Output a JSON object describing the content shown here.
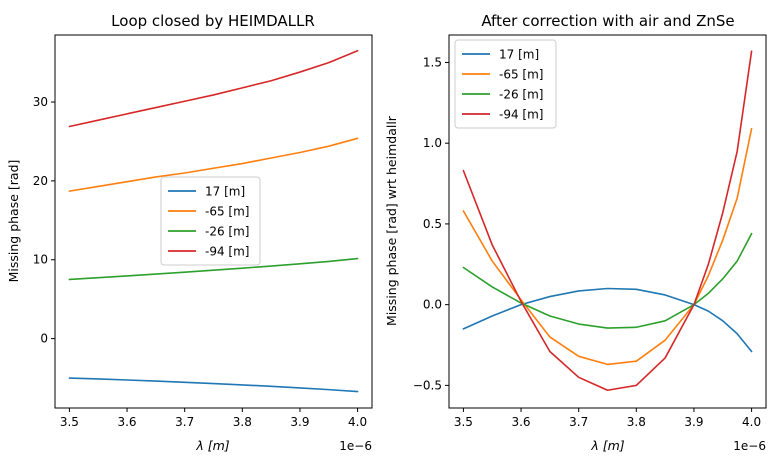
{
  "chart_data": [
    {
      "type": "line",
      "title": "Loop closed by HEIMDALLR",
      "xlabel": "λ [m]",
      "ylabel": "Missing phase [rad]",
      "x_offset_label": "1e−6",
      "xlim": [
        3.475,
        4.025
      ],
      "ylim": [
        -8.8,
        38.5
      ],
      "xticks": [
        3.5,
        3.6,
        3.7,
        3.8,
        3.9,
        4.0
      ],
      "xtick_labels": [
        "3.5",
        "3.6",
        "3.7",
        "3.8",
        "3.9",
        "4.0"
      ],
      "yticks": [
        0,
        10,
        20,
        30
      ],
      "ytick_labels": [
        "0",
        "10",
        "20",
        "30"
      ],
      "legend_loc": "center",
      "x": [
        3.5,
        3.55,
        3.6,
        3.65,
        3.7,
        3.75,
        3.8,
        3.85,
        3.9,
        3.95,
        4.0
      ],
      "series": [
        {
          "name": "17 [m]",
          "color": "#1f77b4",
          "values": [
            -5.0,
            -5.12,
            -5.25,
            -5.39,
            -5.54,
            -5.7,
            -5.87,
            -6.05,
            -6.25,
            -6.47,
            -6.72
          ]
        },
        {
          "name": "-65 [m]",
          "color": "#ff7f0e",
          "values": [
            18.7,
            19.3,
            19.9,
            20.5,
            21.0,
            21.6,
            22.2,
            22.9,
            23.6,
            24.4,
            25.4
          ]
        },
        {
          "name": "-26 [m]",
          "color": "#2ca02c",
          "values": [
            7.5,
            7.72,
            7.95,
            8.18,
            8.42,
            8.67,
            8.93,
            9.2,
            9.48,
            9.78,
            10.15
          ]
        },
        {
          "name": "-94 [m]",
          "color": "#d62728",
          "values": [
            26.9,
            27.7,
            28.5,
            29.3,
            30.1,
            30.9,
            31.8,
            32.7,
            33.8,
            35.0,
            36.5
          ]
        }
      ]
    },
    {
      "type": "line",
      "title": "After correction with air and ZnSe",
      "xlabel": "λ [m]",
      "ylabel": "Missing phase [rad] wrt heimdallr",
      "x_offset_label": "1e−6",
      "xlim": [
        3.475,
        4.025
      ],
      "ylim": [
        -0.64,
        1.67
      ],
      "xticks": [
        3.5,
        3.6,
        3.7,
        3.8,
        3.9,
        4.0
      ],
      "xtick_labels": [
        "3.5",
        "3.6",
        "3.7",
        "3.8",
        "3.9",
        "4.0"
      ],
      "yticks": [
        -0.5,
        0.0,
        0.5,
        1.0,
        1.5
      ],
      "ytick_labels": [
        "−0.5",
        "0.0",
        "0.5",
        "1.0",
        "1.5"
      ],
      "legend_loc": "upper left",
      "x": [
        3.5,
        3.55,
        3.6,
        3.65,
        3.7,
        3.75,
        3.8,
        3.85,
        3.9,
        3.925,
        3.95,
        3.975,
        4.0
      ],
      "series": [
        {
          "name": "17 [m]",
          "color": "#1f77b4",
          "values": [
            -0.15,
            -0.07,
            0.0,
            0.05,
            0.085,
            0.1,
            0.095,
            0.06,
            0.0,
            -0.04,
            -0.1,
            -0.18,
            -0.29
          ]
        },
        {
          "name": "-65 [m]",
          "color": "#ff7f0e",
          "values": [
            0.58,
            0.27,
            0.03,
            -0.2,
            -0.32,
            -0.37,
            -0.35,
            -0.22,
            0.0,
            0.18,
            0.4,
            0.66,
            1.09
          ]
        },
        {
          "name": "-26 [m]",
          "color": "#2ca02c",
          "values": [
            0.23,
            0.11,
            0.01,
            -0.07,
            -0.12,
            -0.145,
            -0.14,
            -0.1,
            0.0,
            0.07,
            0.16,
            0.27,
            0.44
          ]
        },
        {
          "name": "-94 [m]",
          "color": "#d62728",
          "values": [
            0.83,
            0.37,
            0.02,
            -0.29,
            -0.45,
            -0.53,
            -0.5,
            -0.33,
            0.0,
            0.25,
            0.57,
            0.95,
            1.57
          ]
        }
      ]
    }
  ]
}
